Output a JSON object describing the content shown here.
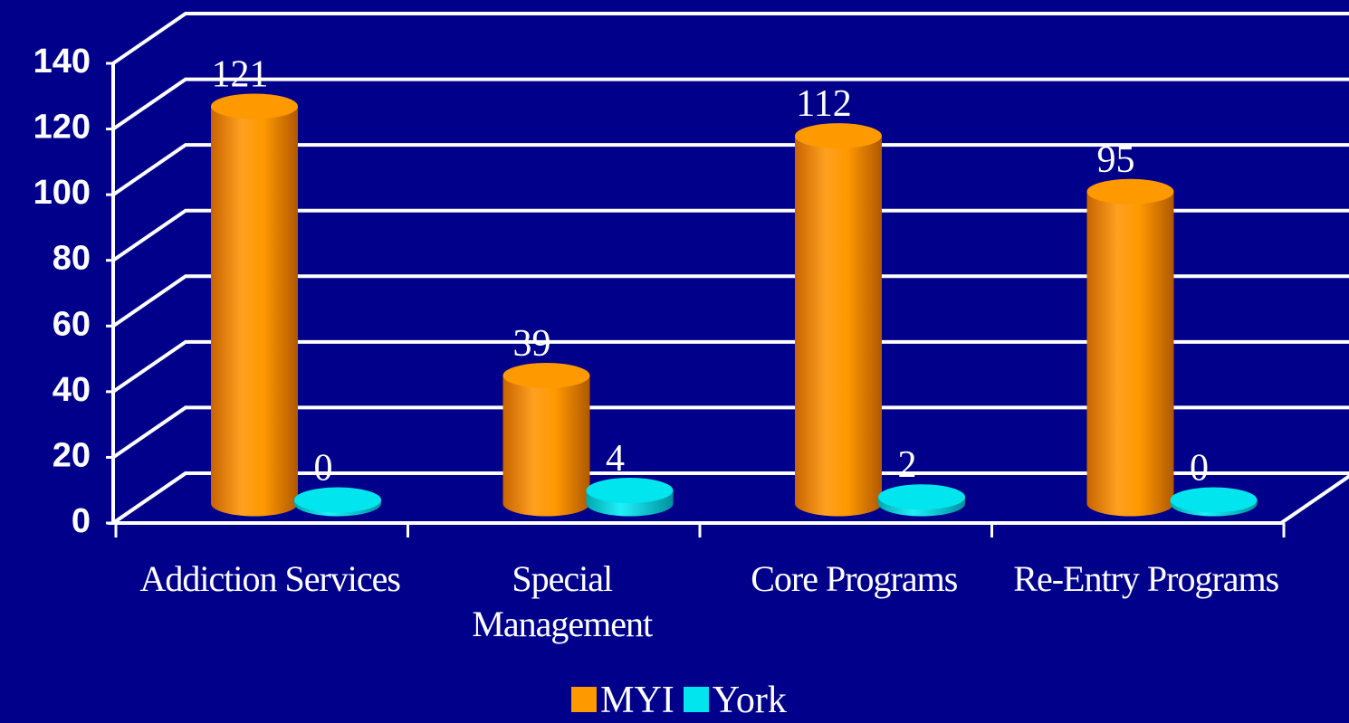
{
  "chart_data": {
    "type": "bar",
    "categories": [
      "Addiction Services",
      "Special Management",
      "Core Programs",
      "Re-Entry Programs"
    ],
    "series": [
      {
        "name": "MYI",
        "color": "#FF9900",
        "values": [
          121,
          39,
          112,
          95
        ]
      },
      {
        "name": "York",
        "color": "#00E5EE",
        "values": [
          0,
          4,
          2,
          0
        ]
      }
    ],
    "ylim": [
      0,
      140
    ],
    "yticks": [
      0,
      20,
      40,
      60,
      80,
      100,
      120,
      140
    ],
    "grid": true,
    "legend": "bottom"
  }
}
